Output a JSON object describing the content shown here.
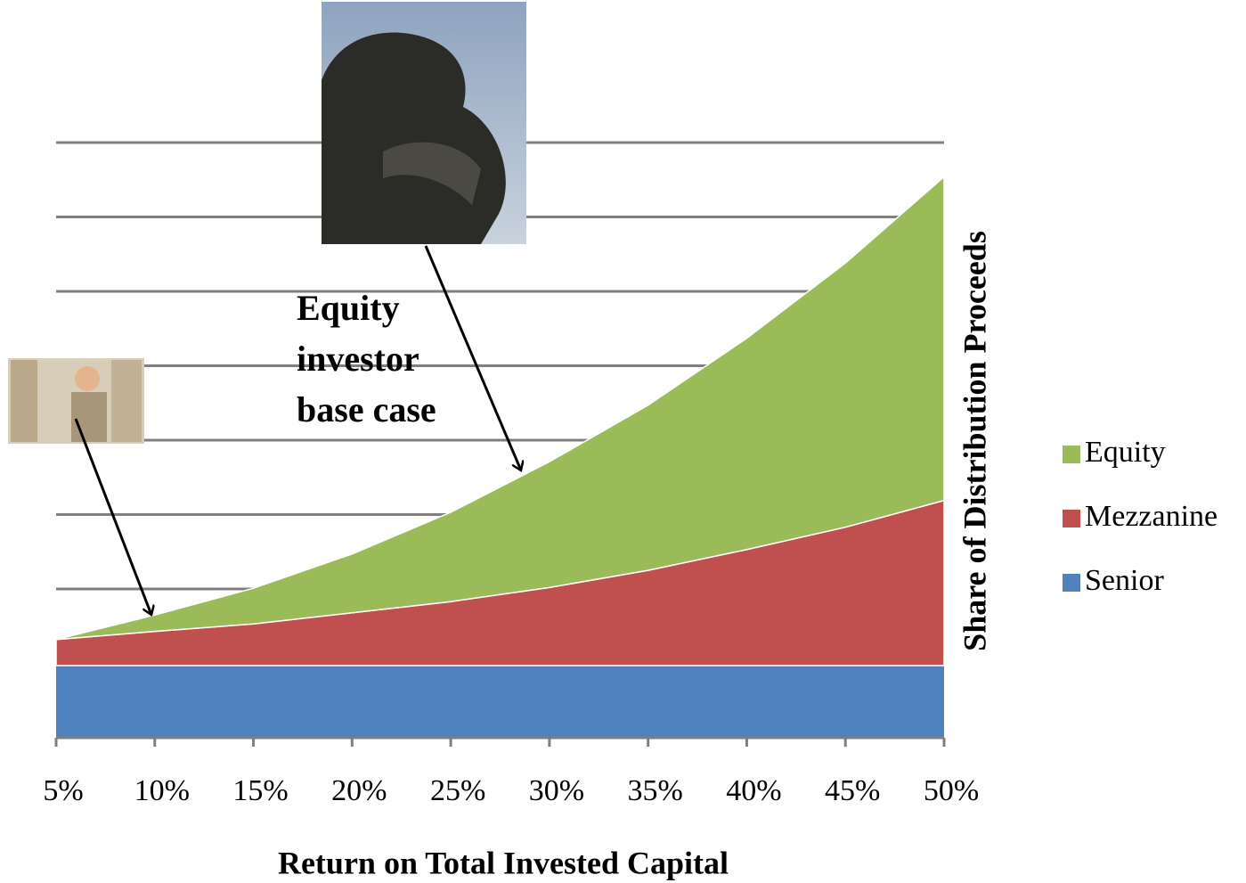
{
  "chart_data": {
    "type": "stacked_area",
    "x_label": "Return on Total Invested Capital",
    "y_label": "Share of Distribution Proceeds",
    "annotation": [
      "Equity",
      "investor",
      "base case"
    ],
    "categories": [
      "5%",
      "10%",
      "15%",
      "20%",
      "25%",
      "30%",
      "35%",
      "40%",
      "45%",
      "50%"
    ],
    "series": [
      {
        "name": "Senior",
        "color": "#4f81bd",
        "values": [
          0.97,
          0.97,
          0.97,
          0.97,
          0.97,
          0.97,
          0.97,
          0.97,
          0.97,
          0.97
        ]
      },
      {
        "name": "Mezzanine",
        "color": "#c0504d",
        "values": [
          0.35,
          0.46,
          0.56,
          0.71,
          0.86,
          1.05,
          1.28,
          1.56,
          1.86,
          2.22
        ]
      },
      {
        "name": "Equity",
        "color": "#9bbb59",
        "values": [
          0,
          0.22,
          0.48,
          0.79,
          1.2,
          1.69,
          2.22,
          2.84,
          3.55,
          4.35
        ]
      }
    ],
    "ylim": [
      0,
      8
    ],
    "yticks": [
      0,
      1,
      2,
      3,
      4,
      5,
      6,
      7,
      8
    ],
    "grid": true,
    "legend": "right"
  }
}
